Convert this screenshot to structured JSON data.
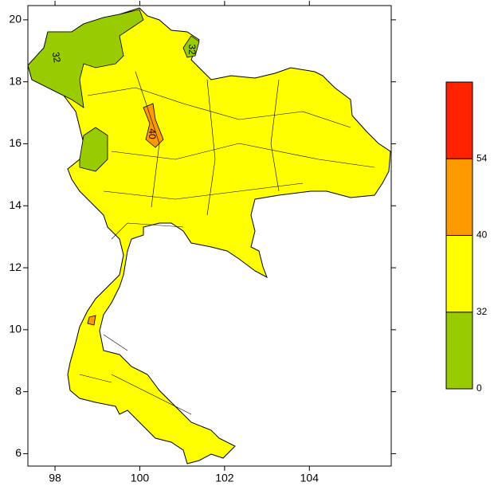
{
  "map": {
    "xlim": [
      97.36,
      105.93
    ],
    "ylim": [
      5.6,
      20.46
    ],
    "xticks": [
      98,
      100,
      102,
      104
    ],
    "yticks": [
      6,
      8,
      10,
      12,
      14,
      16,
      18,
      20
    ],
    "colorbar": {
      "boundaries": [
        0,
        32,
        40,
        54
      ],
      "colors": [
        "#99cc00",
        "#ffff00",
        "#ff9900",
        "#ff2200"
      ]
    },
    "contour_labels": [
      "32",
      "32",
      "40"
    ]
  }
}
